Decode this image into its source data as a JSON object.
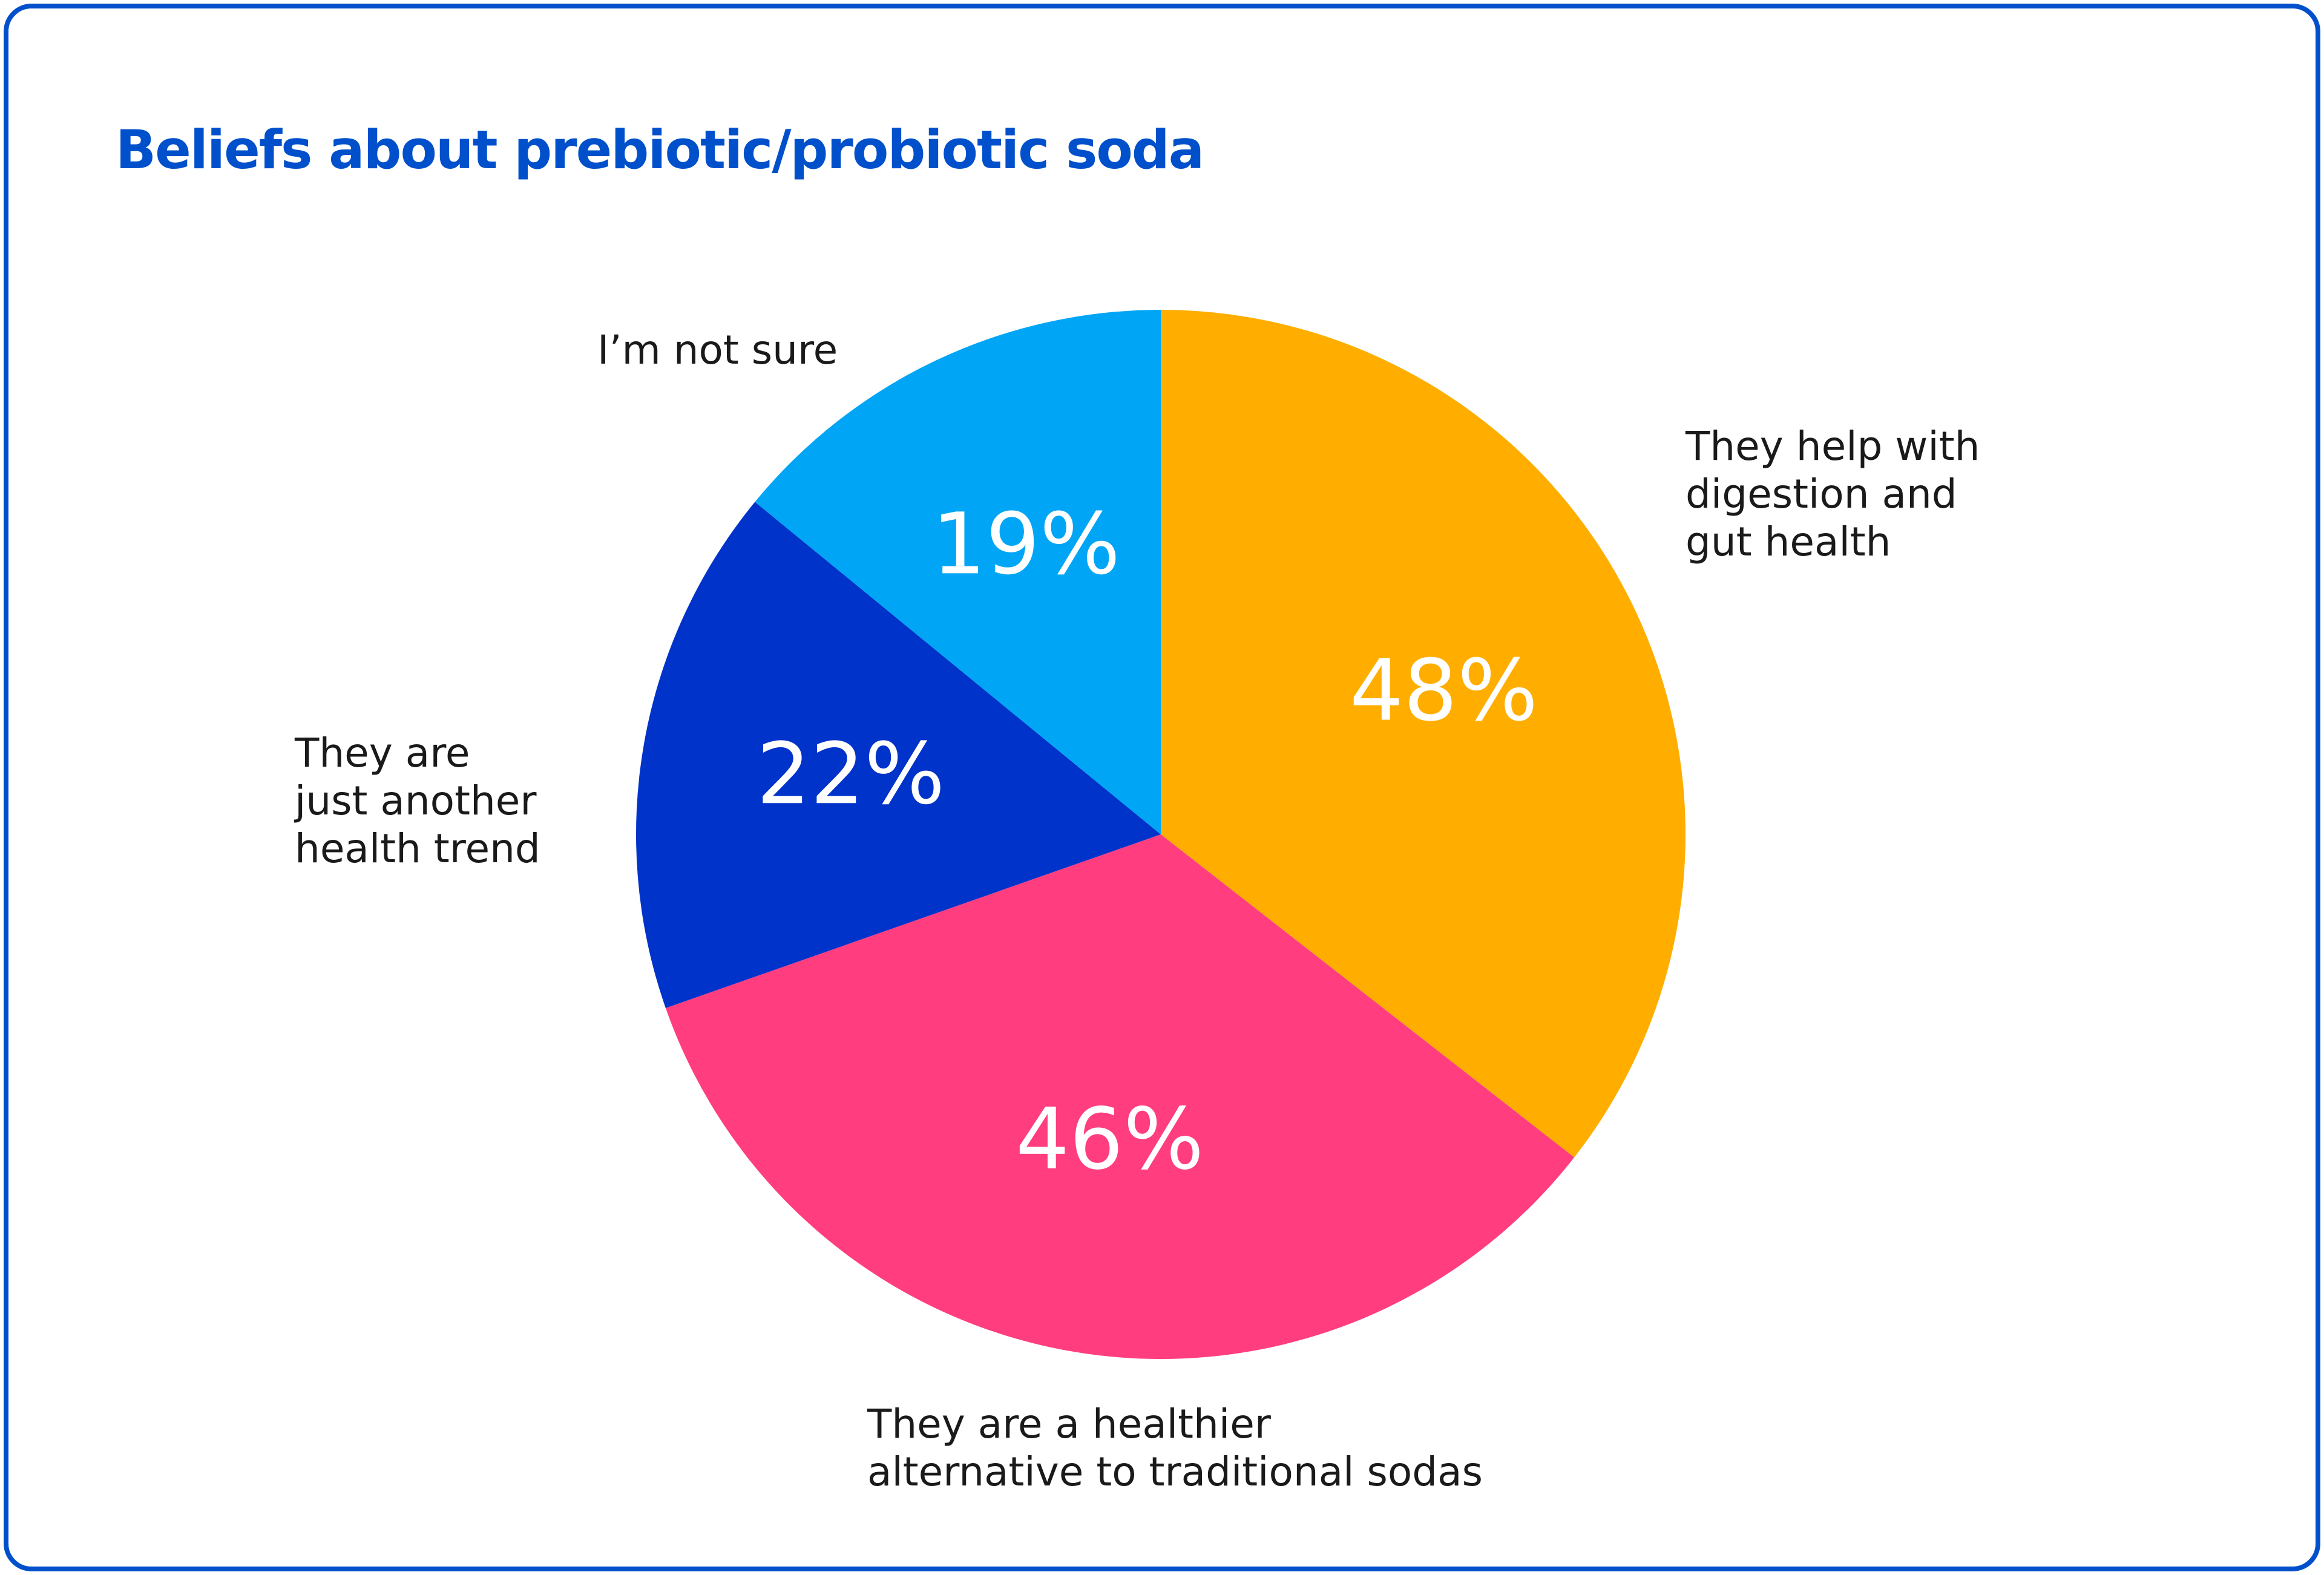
{
  "chart_data": {
    "type": "pie",
    "title": "Beliefs about prebiotic/probiotic soda",
    "categories": [
      "They help with\ndigestion and\ngut health",
      "They are a healthier\nalternative to traditional sodas",
      "They are\njust another\nhealth trend",
      "I’m not sure"
    ],
    "values": [
      48,
      46,
      22,
      19
    ],
    "value_labels": [
      "48%",
      "46%",
      "22%",
      "19%"
    ],
    "colors": [
      "#FFAE00",
      "#FF3D7F",
      "#0033C9",
      "#00A6F5"
    ]
  }
}
